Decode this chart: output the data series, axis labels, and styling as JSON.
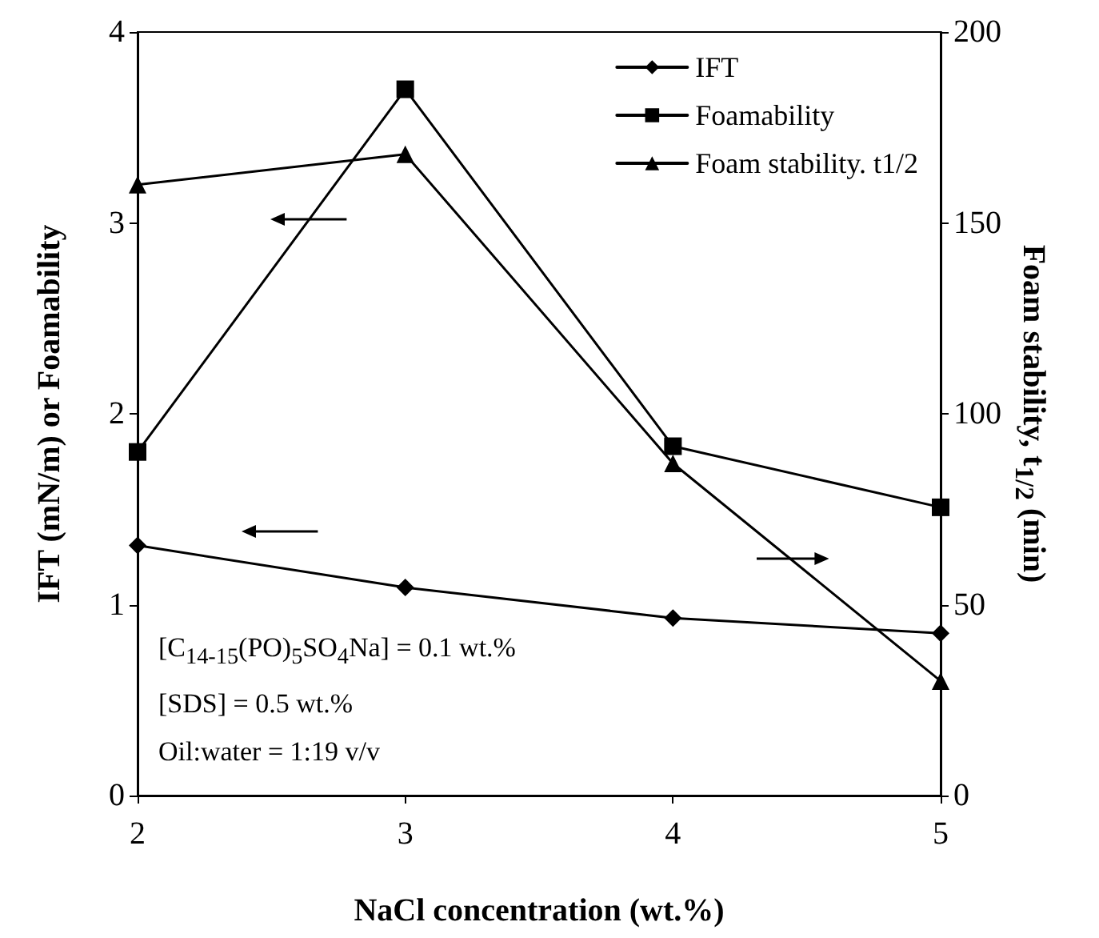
{
  "chart_data": {
    "type": "line",
    "xlabel": "NaCl concentration (wt.%)",
    "ylabel": "IFT (mN/m) or Foamability",
    "y2label": "Foam stability, t$_{1/2}$ (min)",
    "x": [
      2,
      3,
      4,
      5
    ],
    "xlim": [
      2,
      5
    ],
    "xticks": [
      2,
      3,
      4,
      5
    ],
    "ylim": [
      0,
      4
    ],
    "yticks": [
      0,
      1,
      2,
      3,
      4
    ],
    "y2lim": [
      0,
      200
    ],
    "y2ticks": [
      0,
      50,
      100,
      150,
      200
    ],
    "grid": false,
    "legend": "top right",
    "line_style": "solid",
    "annotations": [
      "[C$_{14-15}$(PO)$_{5}$SO$_{4}$Na] = 0.1 wt.%",
      "[SDS] = 0.5 wt.%",
      "Oil:water = 1:19 v/v"
    ],
    "series": [
      {
        "name": "IFT",
        "color": "#000000",
        "marker": "diamond",
        "values": [
          1.31,
          1.09,
          0.93,
          0.85
        ]
      },
      {
        "name": "Foamability",
        "color": "#000000",
        "marker": "square",
        "values": [
          1.8,
          3.7,
          1.83,
          1.51
        ]
      },
      {
        "name": "Foam stability. t1/2",
        "color": "#000000",
        "marker": "triangle",
        "axis": "y2",
        "values": [
          160,
          168,
          87,
          30
        ]
      }
    ]
  }
}
